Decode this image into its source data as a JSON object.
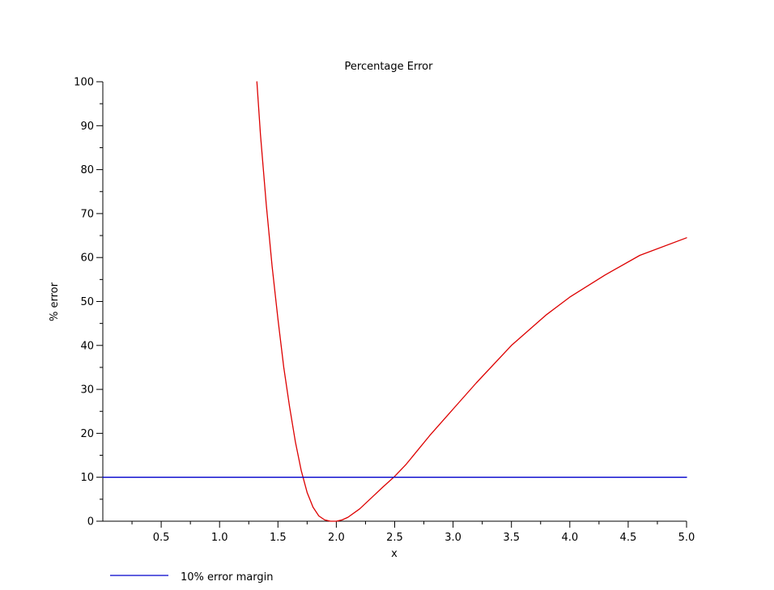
{
  "chart_data": {
    "type": "line",
    "title": "Percentage Error",
    "xlabel": "x",
    "ylabel": "% error",
    "xlim": [
      0.0,
      5.0
    ],
    "ylim": [
      0,
      100
    ],
    "x_ticks": [
      0.5,
      1.0,
      1.5,
      2.0,
      2.5,
      3.0,
      3.5,
      4.0,
      4.5,
      5.0
    ],
    "x_tick_labels": [
      "0.5",
      "1.0",
      "1.5",
      "2.0",
      "2.5",
      "3.0",
      "3.5",
      "4.0",
      "4.5",
      "5.0"
    ],
    "y_ticks": [
      0,
      10,
      20,
      30,
      40,
      50,
      60,
      70,
      80,
      90,
      100
    ],
    "y_tick_labels": [
      "0",
      "10",
      "20",
      "30",
      "40",
      "50",
      "60",
      "70",
      "80",
      "90",
      "100"
    ],
    "grid": false,
    "legend_position": "bottom-left",
    "series": [
      {
        "color": "#dd0000",
        "x": [
          1.32,
          1.35,
          1.4,
          1.45,
          1.5,
          1.55,
          1.6,
          1.65,
          1.7,
          1.75,
          1.8,
          1.85,
          1.9,
          1.95,
          2.0,
          2.05,
          2.1,
          2.2,
          2.3,
          2.4,
          2.5,
          2.6,
          2.8,
          3.0,
          3.2,
          3.5,
          3.8,
          4.0,
          4.3,
          4.6,
          5.0
        ],
        "values": [
          100,
          88,
          72,
          58,
          46,
          35,
          26,
          18,
          11.5,
          6.5,
          3.2,
          1.2,
          0.3,
          0.0,
          0.0,
          0.3,
          0.9,
          2.8,
          5.3,
          7.8,
          10.2,
          13.0,
          19.5,
          25.5,
          31.5,
          40.0,
          47.0,
          51.0,
          56.0,
          60.5,
          64.5
        ]
      },
      {
        "name": "10% error margin",
        "color": "#0000cc",
        "x": [
          0.0,
          5.0
        ],
        "values": [
          10,
          10
        ]
      }
    ]
  }
}
